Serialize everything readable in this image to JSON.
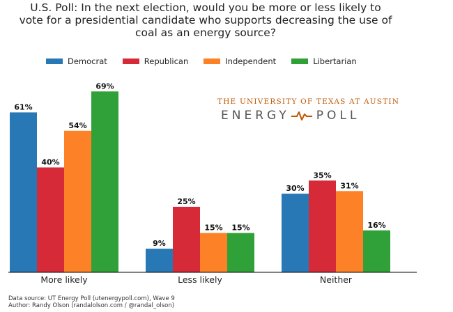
{
  "title_lines": [
    "U.S. Poll: In the next election, would you be more or less likely to",
    "vote for a presidential candidate who supports decreasing the use of",
    "coal as an energy source?"
  ],
  "brand": {
    "top": "THE UNIVERSITY OF TEXAS AT AUSTIN",
    "left": "ENERGY",
    "right": "POLL",
    "pulse_icon": "pulse-line-icon",
    "color": "#bf5700"
  },
  "source_lines": [
    "Data source: UT Energy Poll (utenergypoll.com), Wave 9",
    "Author: Randy Olson (randalolson.com / @randal_olson)"
  ],
  "chart_data": {
    "type": "bar",
    "categories": [
      "More likely",
      "Less likely",
      "Neither"
    ],
    "series": [
      {
        "name": "Democrat",
        "color": "#2878b5",
        "values": [
          61,
          9,
          30
        ],
        "labels": [
          "61%",
          "9%",
          "30%"
        ]
      },
      {
        "name": "Republican",
        "color": "#d62a39",
        "values": [
          40,
          25,
          35
        ],
        "labels": [
          "40%",
          "25%",
          "35%"
        ]
      },
      {
        "name": "Independent",
        "color": "#fd8127",
        "values": [
          54,
          15,
          31
        ],
        "labels": [
          "54%",
          "15%",
          "31%"
        ]
      },
      {
        "name": "Libertarian",
        "color": "#30a138",
        "values": [
          69,
          15,
          16
        ],
        "labels": [
          "69%",
          "15%",
          "16%"
        ]
      }
    ],
    "ylim": [
      0,
      72
    ],
    "grid": false,
    "legend": "top",
    "xlabel": "",
    "ylabel": ""
  }
}
